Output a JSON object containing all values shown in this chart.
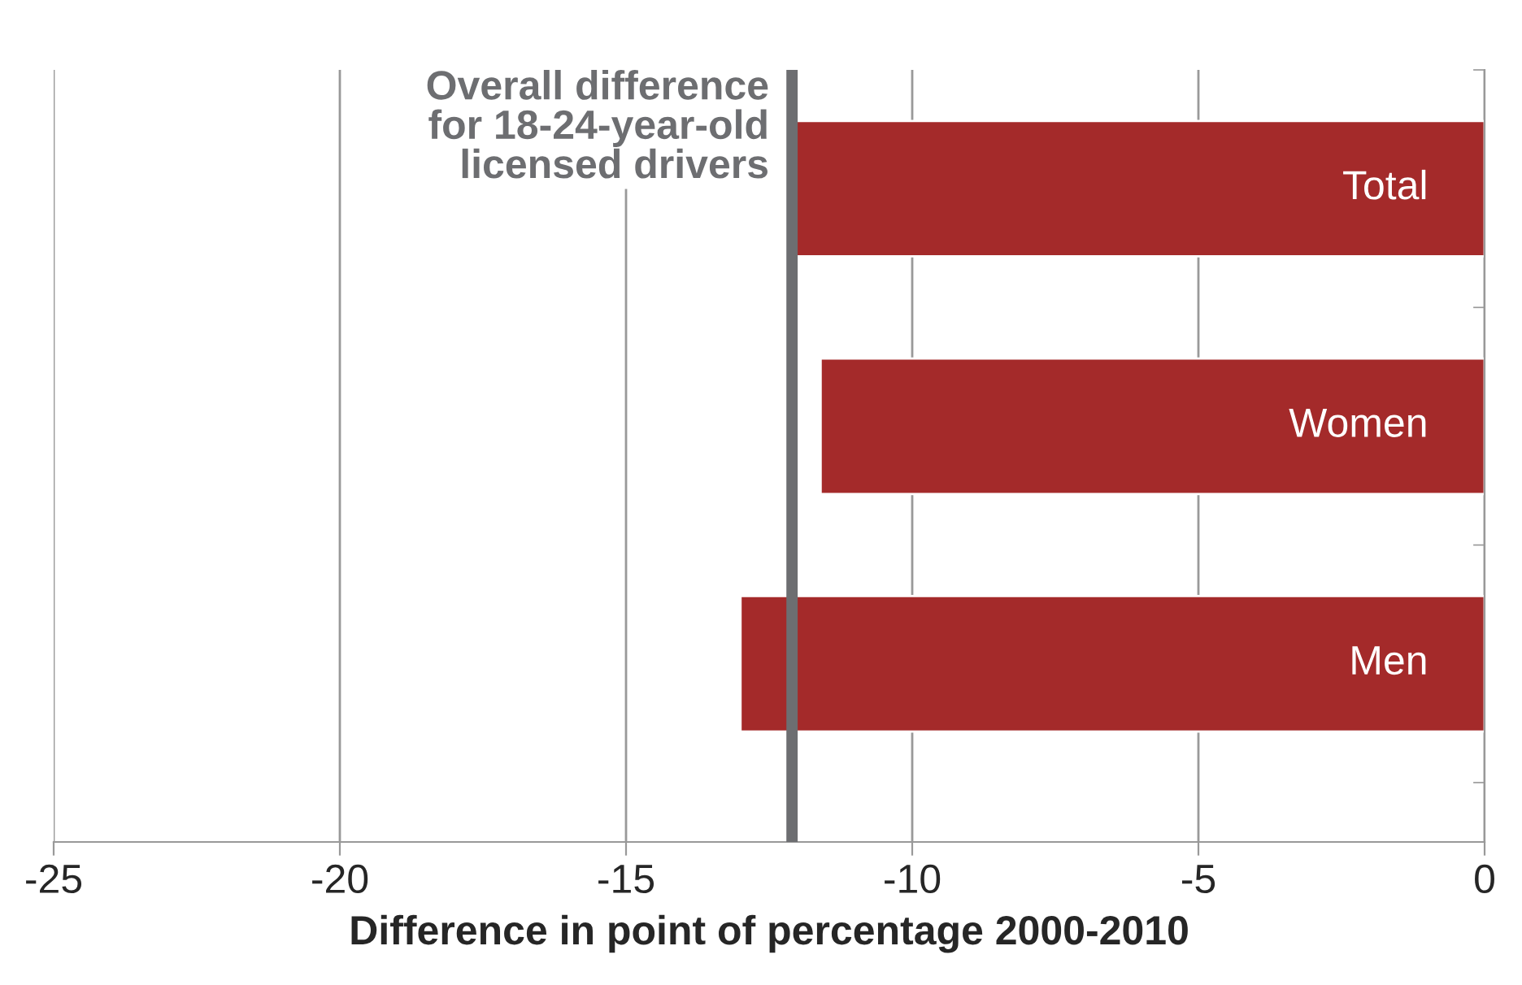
{
  "chart_data": {
    "type": "bar",
    "orientation": "horizontal",
    "xlabel": "Difference in point of percentage 2000-2010",
    "categories": [
      "Total",
      "Women",
      "Men"
    ],
    "series": [
      {
        "color": "#a42a2a",
        "values": [
          -12.1,
          -11.6,
          -13.0
        ]
      }
    ],
    "xlim": [
      -25,
      0
    ],
    "xticks": [
      -25,
      -20,
      -15,
      -10,
      -5,
      0
    ],
    "grid": "x",
    "legend": false,
    "ref_lines": [
      {
        "axis": "x",
        "value": -12.1,
        "label": "Overall difference\nfor 18-24-year-old\nlicensed drivers",
        "color": "#6d6e71",
        "line_style": "solid"
      }
    ]
  }
}
